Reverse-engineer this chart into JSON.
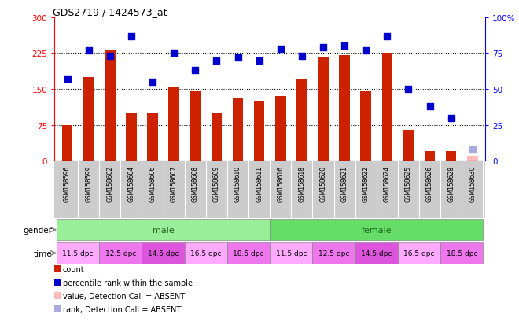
{
  "title": "GDS2719 / 1424573_at",
  "samples": [
    "GSM158596",
    "GSM158599",
    "GSM158602",
    "GSM158604",
    "GSM158606",
    "GSM158607",
    "GSM158608",
    "GSM158609",
    "GSM158610",
    "GSM158611",
    "GSM158616",
    "GSM158618",
    "GSM158620",
    "GSM158621",
    "GSM158622",
    "GSM158624",
    "GSM158625",
    "GSM158626",
    "GSM158628",
    "GSM158630"
  ],
  "bar_values": [
    75,
    175,
    230,
    100,
    100,
    155,
    145,
    100,
    130,
    125,
    135,
    170,
    215,
    220,
    145,
    225,
    65,
    20,
    20,
    10
  ],
  "bar_absent": [
    false,
    false,
    false,
    false,
    false,
    false,
    false,
    false,
    false,
    false,
    false,
    false,
    false,
    false,
    false,
    false,
    false,
    false,
    false,
    true
  ],
  "dot_values": [
    57,
    77,
    73,
    87,
    55,
    75,
    63,
    70,
    72,
    70,
    78,
    73,
    79,
    80,
    77,
    87,
    50,
    38,
    30,
    8
  ],
  "dot_absent": [
    false,
    false,
    false,
    false,
    false,
    false,
    false,
    false,
    false,
    false,
    false,
    false,
    false,
    false,
    false,
    false,
    false,
    false,
    false,
    true
  ],
  "bar_color": "#cc2200",
  "bar_absent_color": "#ffbbbb",
  "dot_color": "#0000cc",
  "dot_absent_color": "#aaaadd",
  "ylim_left": [
    0,
    300
  ],
  "ylim_right": [
    0,
    100
  ],
  "yticks_left": [
    0,
    75,
    150,
    225,
    300
  ],
  "ytick_labels_left": [
    "0",
    "75",
    "150",
    "225",
    "300"
  ],
  "yticks_right": [
    0,
    25,
    50,
    75,
    100
  ],
  "ytick_labels_right": [
    "0",
    "25",
    "50",
    "75",
    "100%"
  ],
  "hlines": [
    75,
    150,
    225
  ],
  "gender_groups": [
    {
      "label": "male",
      "start": 0,
      "end": 10,
      "color": "#99ee99"
    },
    {
      "label": "female",
      "start": 10,
      "end": 20,
      "color": "#66dd66"
    }
  ],
  "time_colors": [
    "#ffaaff",
    "#ee77ee",
    "#dd55dd",
    "#ffaaff",
    "#ee77ee",
    "#ffaaff",
    "#ee77ee",
    "#dd55dd",
    "#ffaaff",
    "#ee77ee"
  ],
  "time_labels": [
    "11.5 dpc",
    "12.5 dpc",
    "14.5 dpc",
    "16.5 dpc",
    "18.5 dpc",
    "11.5 dpc",
    "12.5 dpc",
    "14.5 dpc",
    "16.5 dpc",
    "18.5 dpc"
  ],
  "legend_items": [
    {
      "label": "count",
      "color": "#cc2200"
    },
    {
      "label": "percentile rank within the sample",
      "color": "#0000cc"
    },
    {
      "label": "value, Detection Call = ABSENT",
      "color": "#ffbbbb"
    },
    {
      "label": "rank, Detection Call = ABSENT",
      "color": "#aaaadd"
    }
  ],
  "bar_width": 0.5,
  "dot_size": 35,
  "sample_bg": "#cccccc",
  "fig_bg": "#ffffff"
}
